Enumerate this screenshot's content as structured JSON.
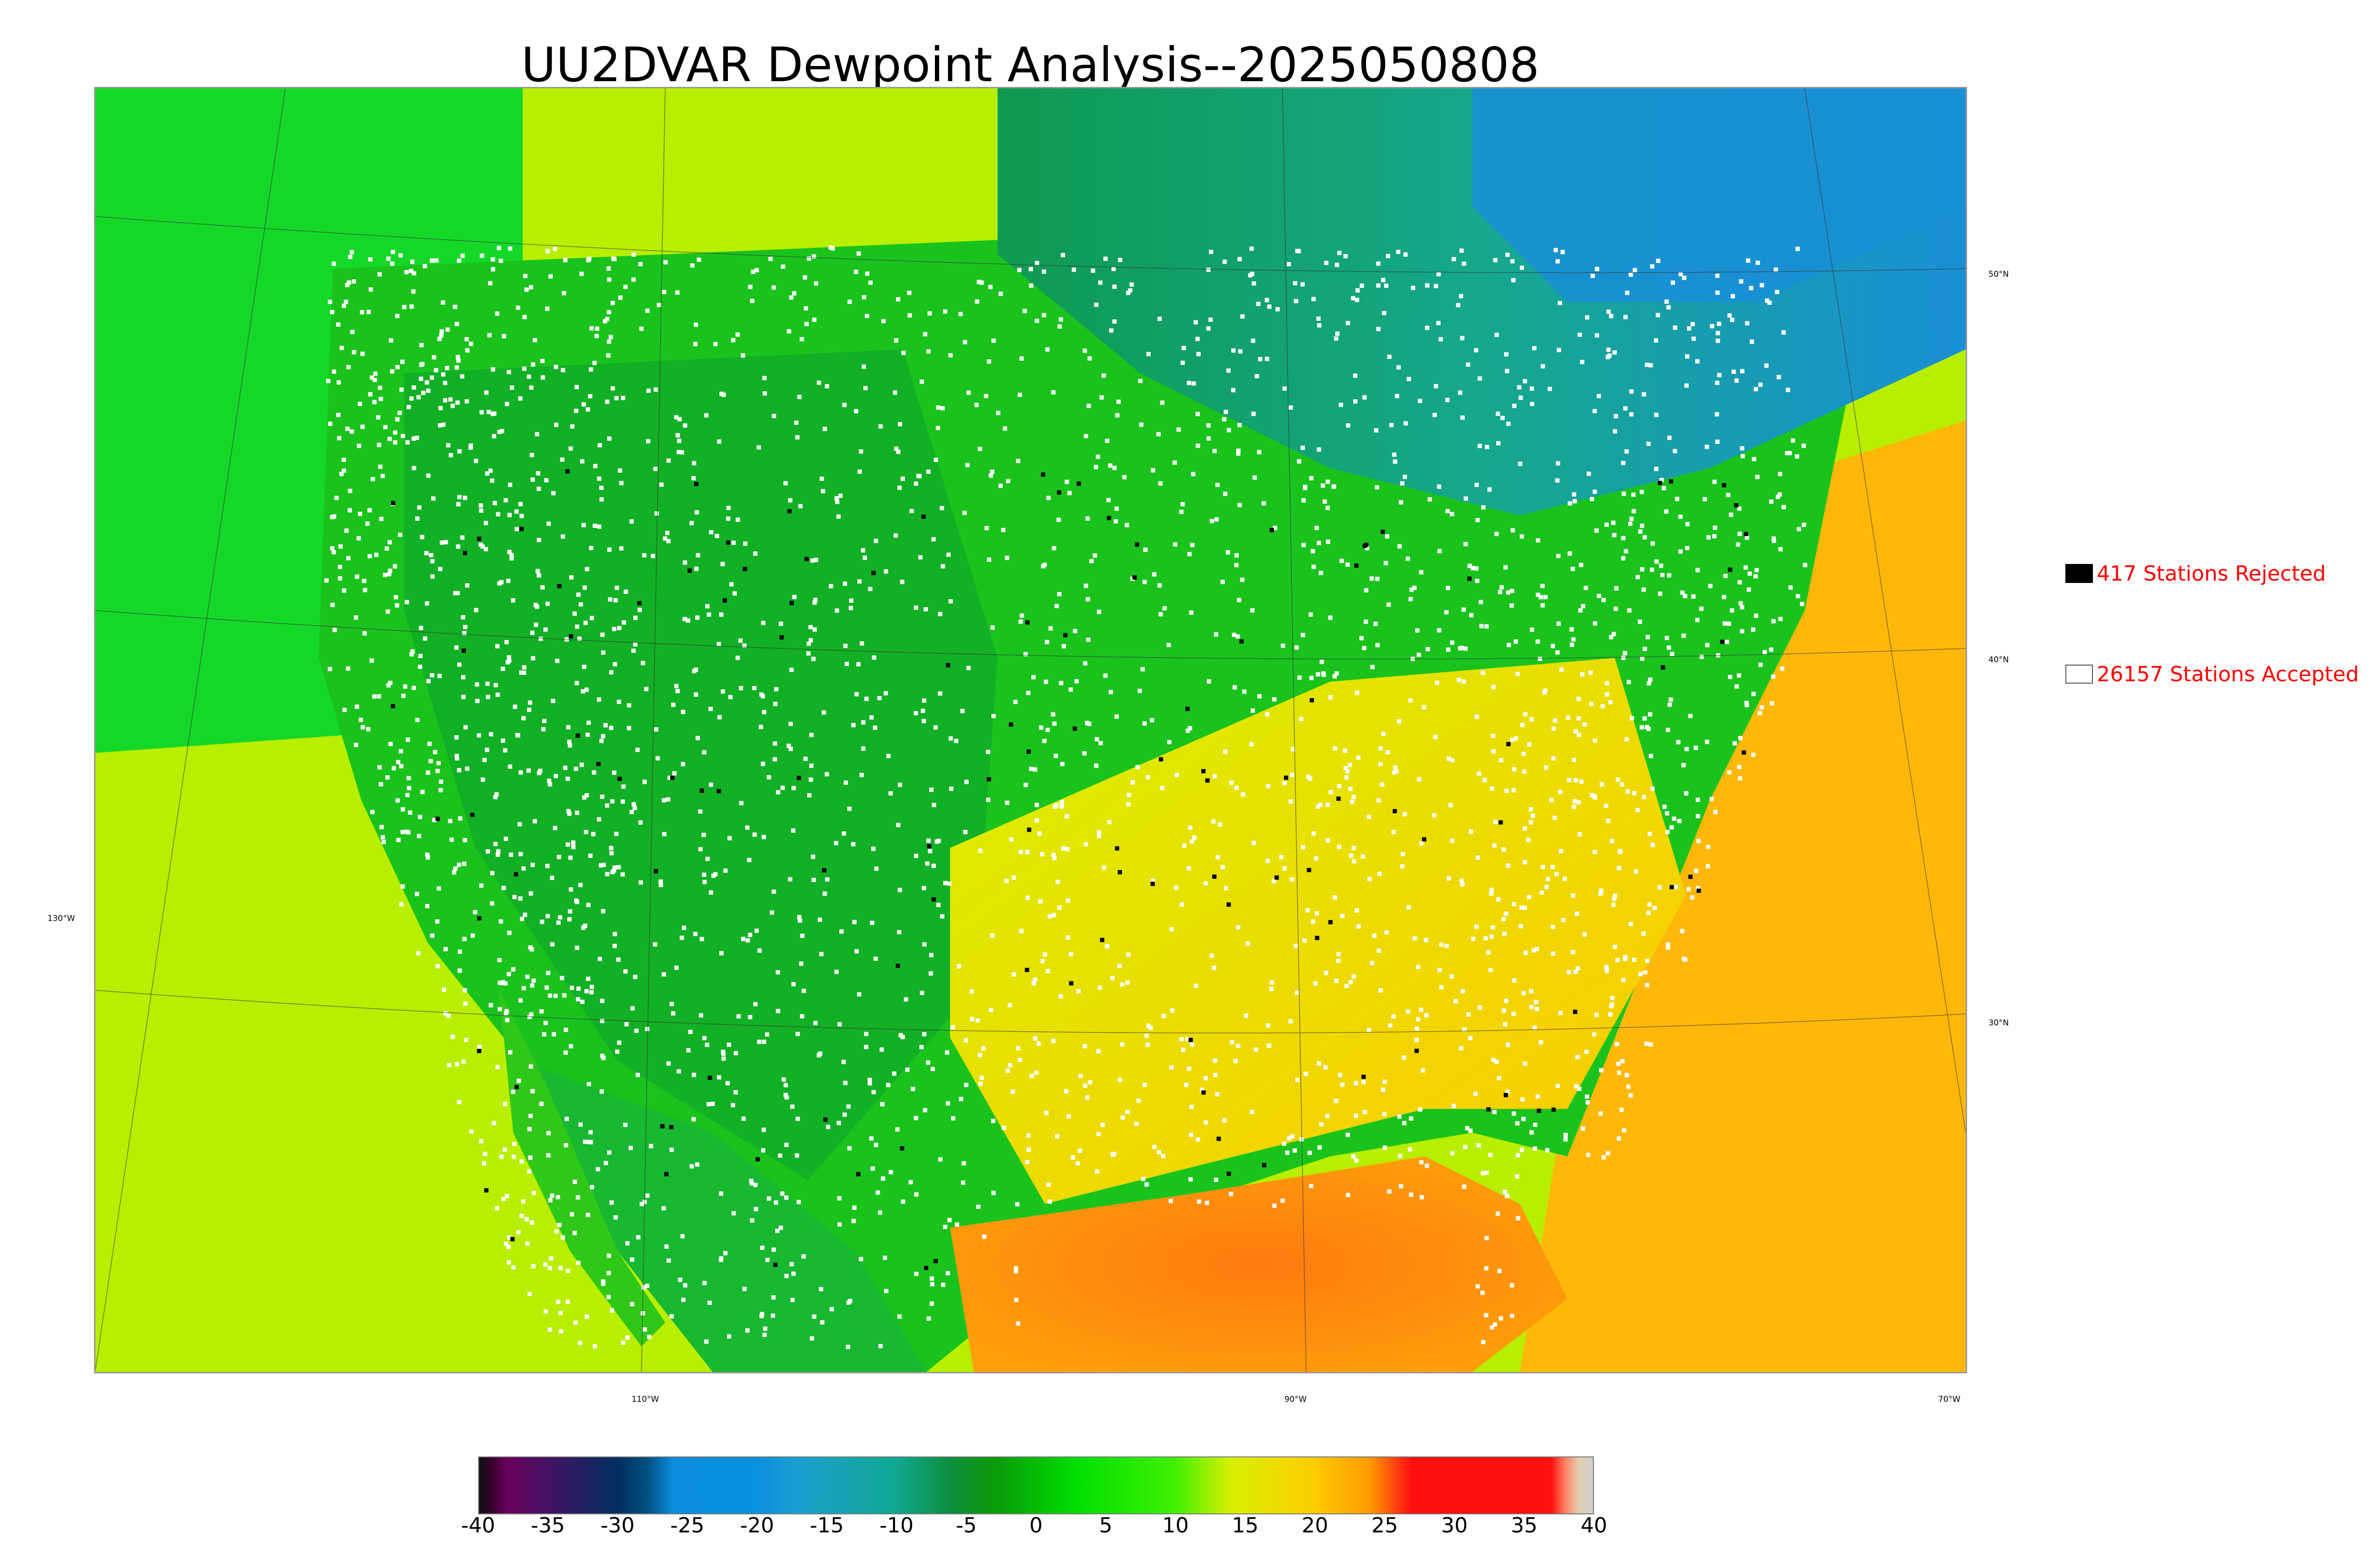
{
  "title": "UU2DVAR Dewpoint Analysis--2025050808",
  "map": {
    "lat_labels": [
      "50°N",
      "40°N",
      "30°N"
    ],
    "lon_labels": [
      "130°W",
      "110°W",
      "90°W",
      "70°W"
    ],
    "colors": {
      "ocean_west": "#c4f000",
      "ocean_west_deep": "#00dc00",
      "land_green": "#16b81e",
      "land_dark": "#0c8f2a",
      "north_teal": "#13a88f",
      "north_blue": "#1a8fd6",
      "southeast_yellow": "#e6e400",
      "gulf_orange": "#ff8a10",
      "atlantic_orange": "#ffb40a",
      "station_accepted": "#ffffff",
      "station_rejected": "#000000"
    }
  },
  "legend": {
    "rejected": {
      "label": "417 Stations Rejected",
      "count": 417,
      "swatch": "#000000"
    },
    "accepted": {
      "label": "26157 Stations Accepted",
      "count": 26157,
      "swatch": "#ffffff"
    }
  },
  "colorbar": {
    "ticks": [
      "-40",
      "-35",
      "-30",
      "-25",
      "-20",
      "-15",
      "-10",
      "-5",
      "0",
      "5",
      "10",
      "15",
      "20",
      "25",
      "30",
      "35",
      "40"
    ],
    "range": [
      -40,
      40
    ],
    "stops": [
      {
        "value": -40,
        "color": "#111111"
      },
      {
        "value": -39,
        "color": "#3a0030"
      },
      {
        "value": -38,
        "color": "#6a0060"
      },
      {
        "value": -30,
        "color": "#003060"
      },
      {
        "value": -28,
        "color": "#004f80"
      },
      {
        "value": -26,
        "color": "#0a8fe0"
      },
      {
        "value": -20,
        "color": "#0a90e0"
      },
      {
        "value": -17,
        "color": "#1aa0d0"
      },
      {
        "value": -10,
        "color": "#10a890"
      },
      {
        "value": -6,
        "color": "#0c8f3a"
      },
      {
        "value": -3,
        "color": "#0a9a0a"
      },
      {
        "value": 3,
        "color": "#00e000"
      },
      {
        "value": 10,
        "color": "#40f000"
      },
      {
        "value": 14,
        "color": "#d8f000"
      },
      {
        "value": 20,
        "color": "#ffcc00"
      },
      {
        "value": 24,
        "color": "#ff9a00"
      },
      {
        "value": 26,
        "color": "#ff3a10"
      },
      {
        "value": 27,
        "color": "#ff0f0f"
      },
      {
        "value": 37,
        "color": "#ff0f0f"
      },
      {
        "value": 38,
        "color": "#ff8060"
      },
      {
        "value": 39,
        "color": "#e0d0b0"
      },
      {
        "value": 40,
        "color": "#d0d0d0"
      }
    ]
  }
}
